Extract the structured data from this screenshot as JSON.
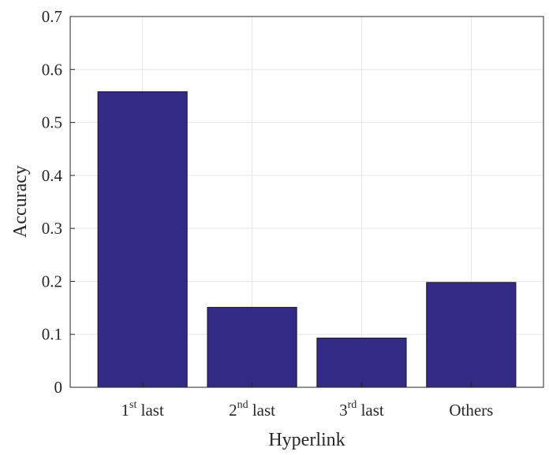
{
  "chart_data": {
    "type": "bar",
    "categories": [
      {
        "base": "1",
        "sup": "st",
        "rest": " last"
      },
      {
        "base": "2",
        "sup": "nd",
        "rest": " last"
      },
      {
        "base": "3",
        "sup": "rd",
        "rest": " last"
      },
      {
        "base": "Others",
        "sup": "",
        "rest": ""
      }
    ],
    "values": [
      0.558,
      0.151,
      0.093,
      0.198
    ],
    "title": "",
    "xlabel": "Hyperlink",
    "ylabel": "Accuracy",
    "ylim": [
      0,
      0.7
    ],
    "yticks": [
      "0",
      "0.1",
      "0.2",
      "0.3",
      "0.4",
      "0.5",
      "0.6",
      "0.7"
    ],
    "grid": true,
    "bar_color": "#332a85",
    "bar_edge_color": "#1a1a1a"
  }
}
